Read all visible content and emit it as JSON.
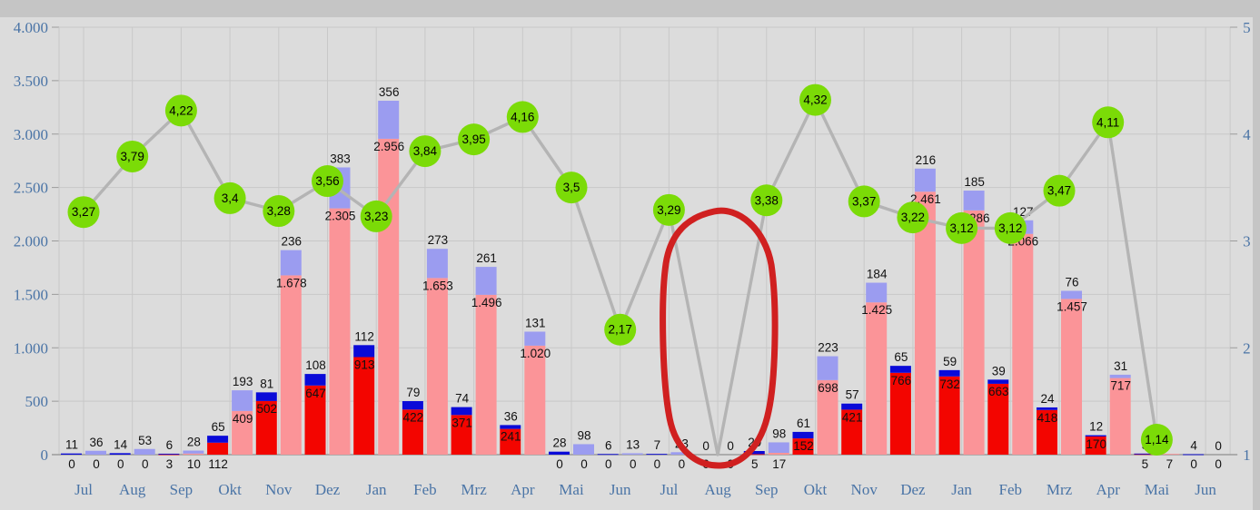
{
  "window": {
    "title": ""
  },
  "chart_data": {
    "type": "combo-stacked-bar-line",
    "title": "",
    "xlabel": "",
    "ylabel": "",
    "legend": "none",
    "grid": true,
    "categories": [
      "Jul",
      "Aug",
      "Sep",
      "Okt",
      "Nov",
      "Dez",
      "Jan",
      "Feb",
      "Mrz",
      "Apr",
      "Mai",
      "Jun",
      "Jul",
      "Aug",
      "Sep",
      "Okt",
      "Nov",
      "Dez",
      "Jan",
      "Feb",
      "Mrz",
      "Apr",
      "Mai",
      "Jun"
    ],
    "left_axis": {
      "min": 0,
      "max": 4000,
      "ticks": [
        "0",
        "500",
        "1.000",
        "1.500",
        "2.000",
        "2.500",
        "3.000",
        "3.500",
        "4.000"
      ]
    },
    "right_axis": {
      "min": 1,
      "max": 5,
      "ticks": [
        "1",
        "2",
        "3",
        "4",
        "5"
      ]
    },
    "bar_series": [
      {
        "name": "stack1-bottom-red",
        "color": "#f30500",
        "values": [
          0,
          0,
          3,
          112,
          502,
          647,
          913,
          422,
          371,
          241,
          0,
          0,
          0,
          0,
          5,
          152,
          421,
          766,
          732,
          663,
          418,
          170,
          5,
          0
        ],
        "labels": [
          "0",
          "0",
          "3",
          "112",
          "502",
          "647",
          "913",
          "422",
          "371",
          "241",
          "0",
          "0",
          "0",
          "0",
          "5",
          "152",
          "421",
          "766",
          "732",
          "663",
          "418",
          "170",
          "5",
          "0"
        ]
      },
      {
        "name": "stack1-top-blue",
        "color": "#0a0ad8",
        "values": [
          11,
          14,
          6,
          65,
          81,
          108,
          112,
          79,
          74,
          36,
          28,
          6,
          7,
          0,
          29,
          61,
          57,
          65,
          59,
          39,
          24,
          12,
          5,
          4
        ],
        "labels": [
          "11",
          "14",
          "6",
          "65",
          "81",
          "108",
          "112",
          "79",
          "74",
          "36",
          "28",
          "6",
          "7",
          "0",
          "29",
          "61",
          "57",
          "65",
          "59",
          "39",
          "24",
          "12",
          "5",
          "4"
        ]
      },
      {
        "name": "stack2-bottom-pink",
        "color": "#fb9498",
        "values": [
          0,
          0,
          10,
          409,
          1678,
          2305,
          2956,
          1653,
          1496,
          1020,
          0,
          0,
          0,
          0,
          17,
          698,
          1425,
          2461,
          2286,
          2066,
          1457,
          717,
          7,
          0
        ],
        "labels": [
          "0",
          "0",
          "10",
          "409",
          "1.678",
          "2.305",
          "2.956",
          "1.653",
          "1.496",
          "1.020",
          "0",
          "0",
          "0",
          "0",
          "17",
          "698",
          "1.425",
          "2.461",
          "2.286",
          "2.066",
          "1.457",
          "717",
          "7",
          "0"
        ]
      },
      {
        "name": "stack2-top-lavender",
        "color": "#9b9cf0",
        "values": [
          36,
          53,
          28,
          193,
          236,
          383,
          356,
          273,
          261,
          131,
          98,
          13,
          23,
          0,
          98,
          223,
          184,
          216,
          185,
          127,
          76,
          31,
          null,
          0
        ],
        "labels": [
          "36",
          "53",
          "28",
          "193",
          "236",
          "383",
          "356",
          "273",
          "261",
          "131",
          "98",
          "13",
          "23",
          "0",
          "98",
          "223",
          "184",
          "216",
          "185",
          "127",
          "76",
          "31",
          null,
          "0"
        ]
      }
    ],
    "line_series": {
      "name": "average-line",
      "color": "#b4b4b4",
      "marker_color": "#7bdb07",
      "values": [
        3.27,
        3.79,
        4.22,
        3.4,
        3.28,
        3.56,
        3.23,
        3.84,
        3.95,
        4.16,
        3.5,
        2.17,
        3.29,
        1.0,
        3.38,
        4.32,
        3.37,
        3.22,
        3.12,
        3.12,
        3.47,
        4.11,
        1.14,
        null
      ],
      "labels": [
        "3,27",
        "3,79",
        "4,22",
        "3,4",
        "3,28",
        "3,56",
        "3,23",
        "3,84",
        "3,95",
        "4,16",
        "3,5",
        "2,17",
        "3,29",
        null,
        "3,38",
        "4,32",
        "3,37",
        "3,22",
        "3,12",
        "3,12",
        "3,47",
        "4,11",
        "1,14",
        null
      ]
    },
    "annotation": {
      "type": "hand-drawn-circle",
      "color": "#d02020",
      "around_category_index": 13
    },
    "colors": {
      "background": "#dcdcdc",
      "band": "#c5c5c5",
      "gridline": "#c8c8c8",
      "axis_line": "#9b9b9b",
      "axis_text": "#4a74a6",
      "label_text": "#111111"
    }
  }
}
